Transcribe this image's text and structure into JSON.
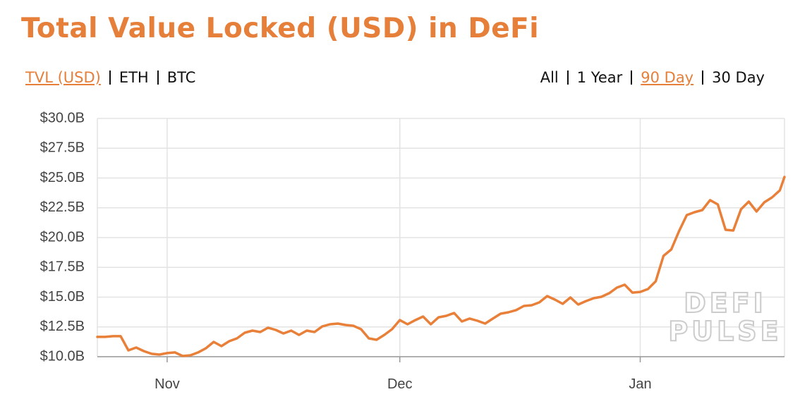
{
  "chart_data": {
    "type": "line",
    "title": "Total Value Locked (USD) in DeFi",
    "units_toggle": [
      "TVL (USD)",
      "ETH",
      "BTC"
    ],
    "range_toggle": [
      "All",
      "1 Year",
      "90 Day",
      "30 Day"
    ],
    "watermark": [
      "DEFI",
      "PULSE"
    ],
    "color": "#e8803a",
    "grid": true,
    "x": [
      0,
      1,
      2,
      3,
      4,
      5,
      6,
      7,
      8,
      9,
      10,
      11,
      12,
      13,
      14,
      15,
      16,
      17,
      18,
      19,
      20,
      21,
      22,
      23,
      24,
      25,
      26,
      27,
      28,
      29,
      30,
      31,
      32,
      33,
      34,
      35,
      36,
      37,
      38,
      39,
      40,
      41,
      42,
      43,
      44,
      45,
      46,
      47,
      48,
      49,
      50,
      51,
      52,
      53,
      54,
      55,
      56,
      57,
      58,
      59,
      60,
      61,
      62,
      63,
      64,
      65,
      66,
      67,
      68,
      69,
      70,
      71,
      72,
      73,
      74,
      75,
      76,
      77,
      78,
      79,
      80,
      81,
      82,
      83,
      84,
      85,
      86,
      87,
      88,
      88.6
    ],
    "values": [
      11.66,
      11.66,
      11.72,
      11.72,
      10.53,
      10.77,
      10.47,
      10.24,
      10.18,
      10.3,
      10.36,
      10.06,
      10.12,
      10.36,
      10.71,
      11.24,
      10.89,
      11.3,
      11.54,
      12.01,
      12.19,
      12.07,
      12.43,
      12.25,
      11.95,
      12.19,
      11.83,
      12.19,
      12.07,
      12.54,
      12.72,
      12.78,
      12.66,
      12.6,
      12.31,
      11.54,
      11.42,
      11.83,
      12.31,
      13.07,
      12.72,
      13.07,
      13.37,
      12.72,
      13.31,
      13.43,
      13.67,
      12.96,
      13.2,
      13.02,
      12.78,
      13.2,
      13.61,
      13.73,
      13.91,
      14.26,
      14.32,
      14.56,
      15.09,
      14.79,
      14.44,
      14.97,
      14.38,
      14.67,
      14.91,
      15.03,
      15.33,
      15.8,
      16.04,
      15.38,
      15.44,
      15.68,
      16.33,
      18.46,
      19.0,
      20.53,
      21.89,
      22.13,
      22.31,
      23.14,
      22.78,
      20.65,
      20.59,
      22.37,
      23.02,
      22.19,
      22.96,
      23.37,
      23.96,
      25.09
    ],
    "xlim": [
      0,
      88.6
    ],
    "xticks": [
      {
        "value": 9,
        "label": "Nov"
      },
      {
        "value": 39,
        "label": "Dec"
      },
      {
        "value": 70,
        "label": "Jan"
      }
    ],
    "ylim": [
      10,
      30
    ],
    "yticks": [
      {
        "value": 10,
        "label": "$10.0B"
      },
      {
        "value": 12.5,
        "label": "$12.5B"
      },
      {
        "value": 15,
        "label": "$15.0B"
      },
      {
        "value": 17.5,
        "label": "$17.5B"
      },
      {
        "value": 20,
        "label": "$20.0B"
      },
      {
        "value": 22.5,
        "label": "$22.5B"
      },
      {
        "value": 25,
        "label": "$25.0B"
      },
      {
        "value": 27.5,
        "label": "$27.5B"
      },
      {
        "value": 30,
        "label": "$30.0B"
      }
    ]
  }
}
